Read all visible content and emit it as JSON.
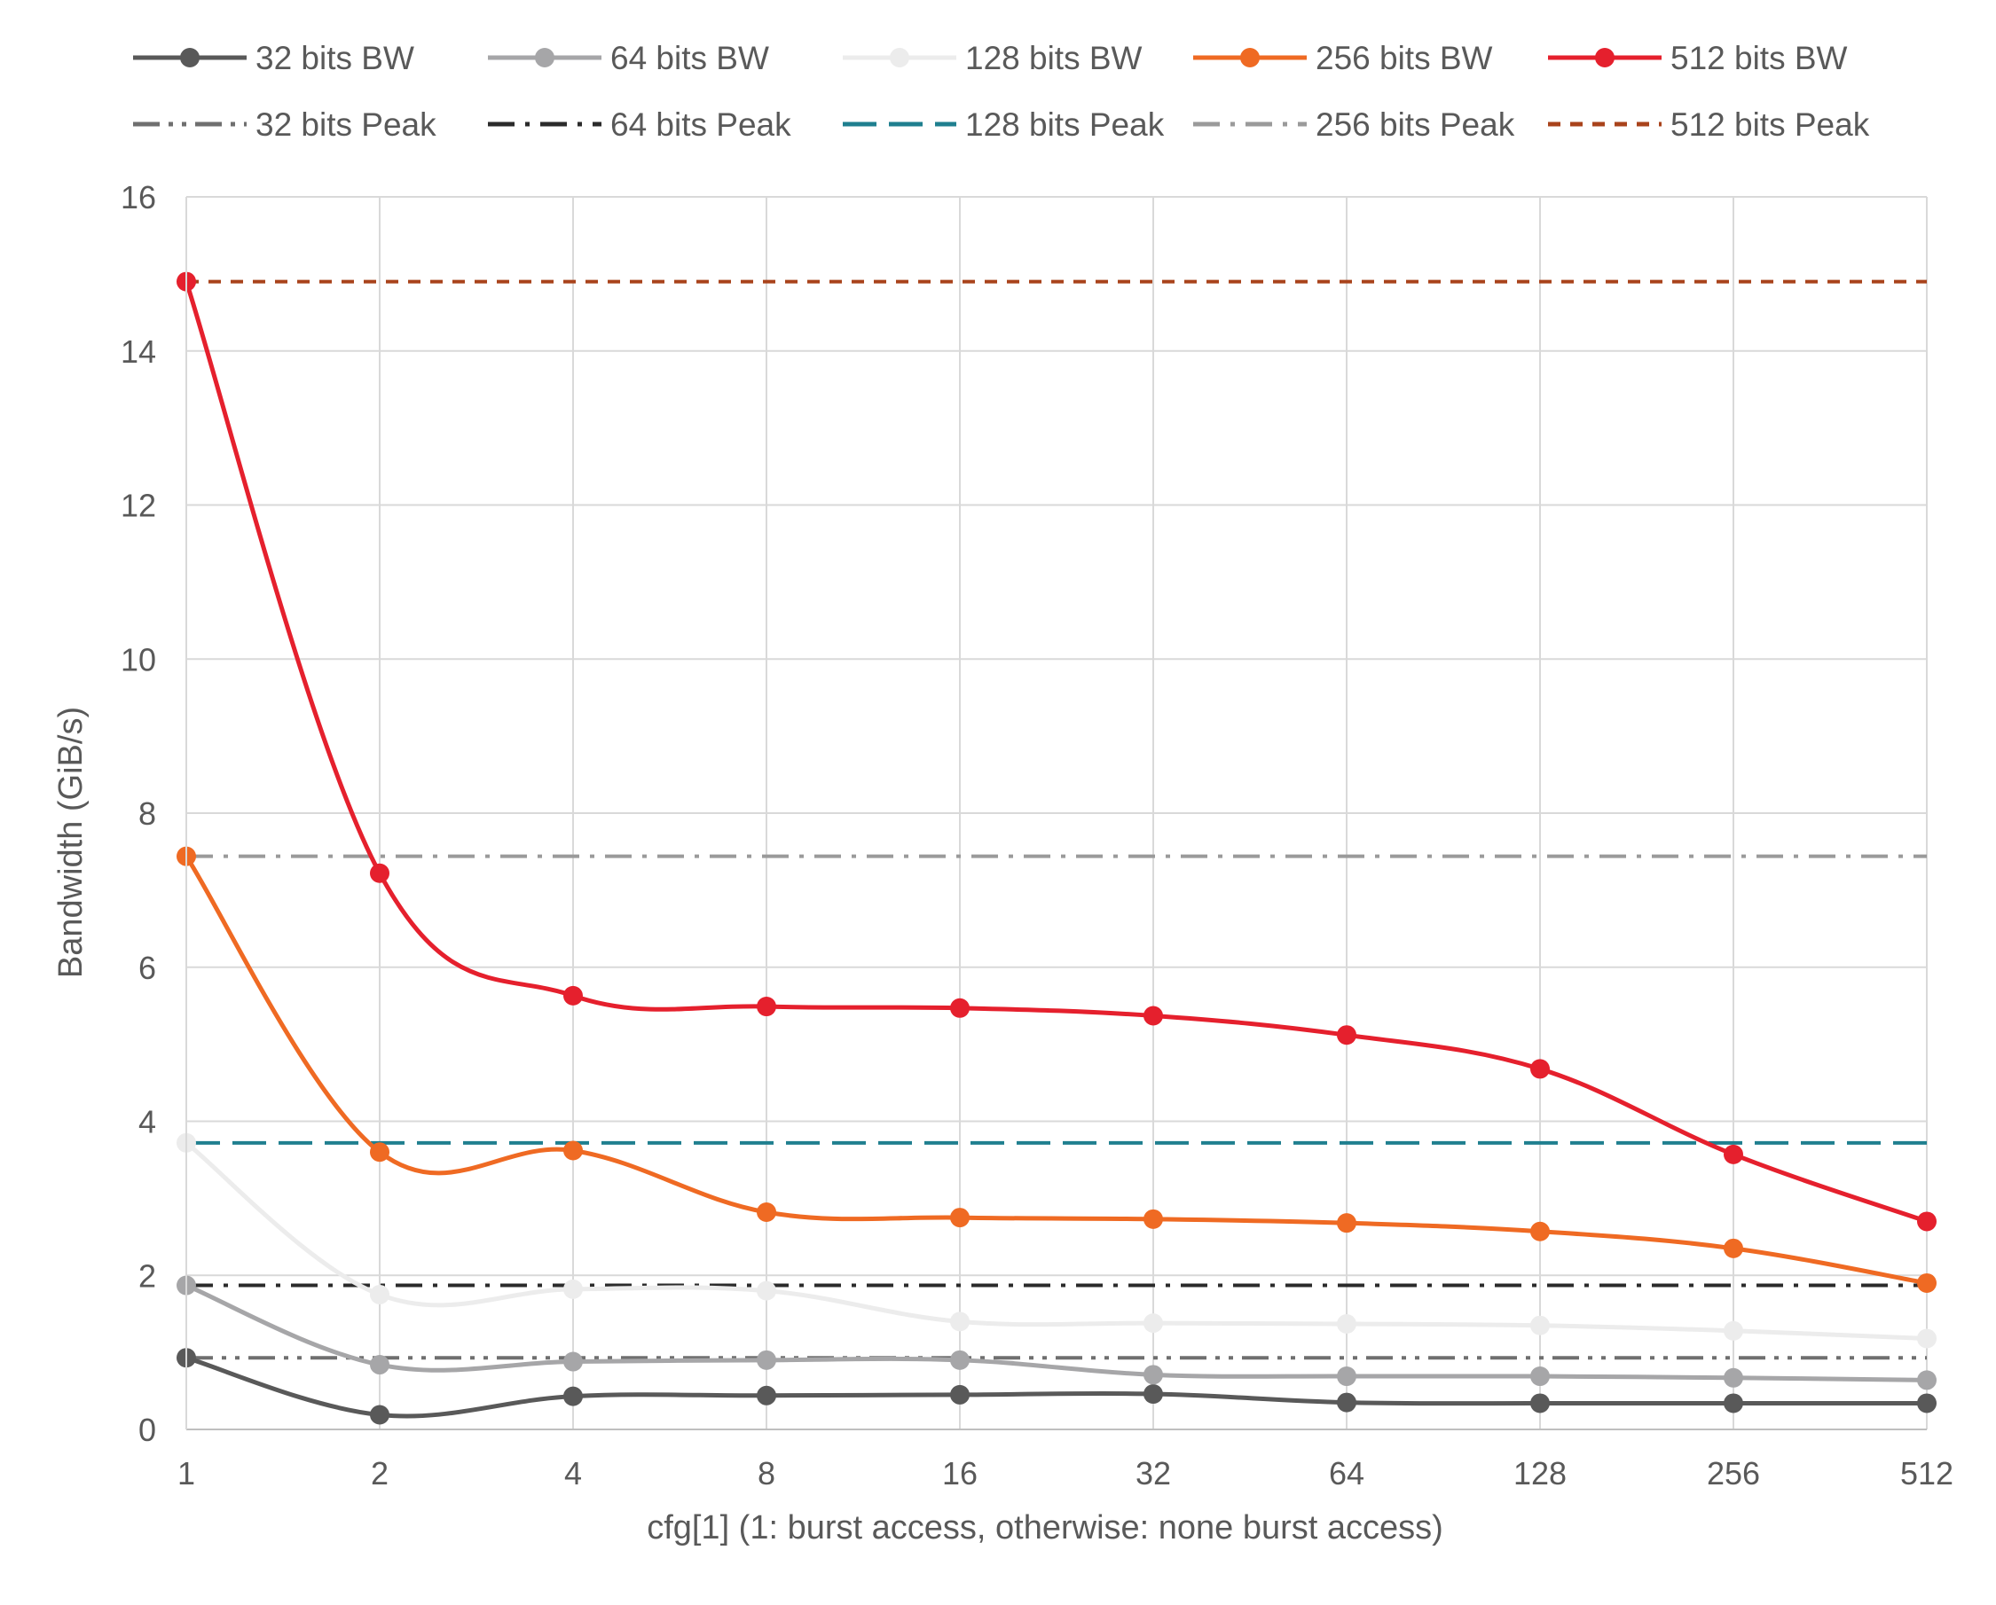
{
  "chart_data": {
    "type": "line",
    "title": "",
    "xlabel": "cfg[1] (1: burst access,  otherwise: none burst access)",
    "ylabel": "Bandwidth (GiB/s)",
    "categories": [
      "1",
      "2",
      "4",
      "8",
      "16",
      "32",
      "64",
      "128",
      "256",
      "512"
    ],
    "ylim": [
      0,
      16
    ],
    "yticks": [
      0,
      2,
      4,
      6,
      8,
      10,
      12,
      14,
      16
    ],
    "grid": true,
    "legend_position": "top",
    "series": [
      {
        "name": "32 bits BW",
        "color": "#595959",
        "style": "solid-marker",
        "values": [
          0.93,
          0.19,
          0.43,
          0.44,
          0.45,
          0.46,
          0.35,
          0.34,
          0.34,
          0.34
        ]
      },
      {
        "name": "64 bits BW",
        "color": "#a6a6a8",
        "style": "solid-marker",
        "values": [
          1.87,
          0.84,
          0.88,
          0.9,
          0.9,
          0.71,
          0.69,
          0.69,
          0.67,
          0.64
        ]
      },
      {
        "name": "128 bits BW",
        "color": "#ececec",
        "style": "solid-marker",
        "values": [
          3.72,
          1.75,
          1.82,
          1.8,
          1.4,
          1.38,
          1.37,
          1.35,
          1.28,
          1.18
        ]
      },
      {
        "name": "256 bits BW",
        "color": "#ef6a23",
        "style": "solid-marker",
        "values": [
          7.44,
          3.6,
          3.62,
          2.82,
          2.75,
          2.73,
          2.68,
          2.57,
          2.35,
          1.9
        ]
      },
      {
        "name": "512 bits BW",
        "color": "#e5202d",
        "style": "solid-marker",
        "values": [
          14.9,
          7.22,
          5.63,
          5.49,
          5.47,
          5.37,
          5.12,
          4.68,
          3.57,
          2.7
        ]
      },
      {
        "name": "32 bits Peak",
        "color": "#6f6f6f",
        "style": "dash-dot-dot",
        "value": 0.93
      },
      {
        "name": "64 bits Peak",
        "color": "#2b2b2b",
        "style": "dash-dot",
        "value": 1.87
      },
      {
        "name": "128 bits Peak",
        "color": "#1f7f8f",
        "style": "dash",
        "value": 3.72
      },
      {
        "name": "256 bits Peak",
        "color": "#9a9a9a",
        "style": "dash-dot",
        "value": 7.44
      },
      {
        "name": "512 bits Peak",
        "color": "#a9431b",
        "style": "short-dash",
        "value": 14.9
      }
    ]
  }
}
